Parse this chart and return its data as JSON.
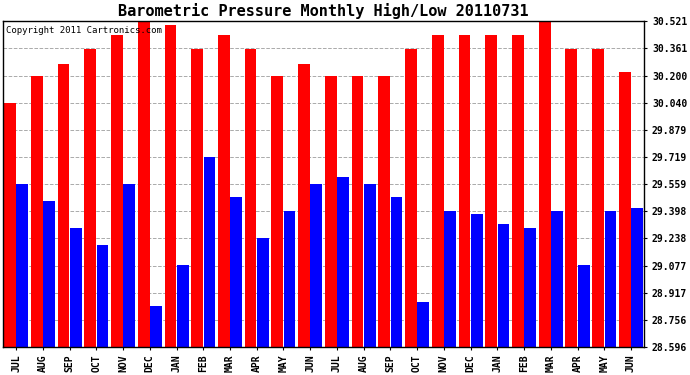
{
  "title": "Barometric Pressure Monthly High/Low 20110731",
  "copyright_text": "Copyright 2011 Cartronics.com",
  "months": [
    "JUL",
    "AUG",
    "SEP",
    "OCT",
    "NOV",
    "DEC",
    "JAN",
    "FEB",
    "MAR",
    "APR",
    "MAY",
    "JUN",
    "JUL",
    "AUG",
    "SEP",
    "OCT",
    "NOV",
    "DEC",
    "JAN",
    "FEB",
    "MAR",
    "APR",
    "MAY",
    "JUN"
  ],
  "highs": [
    30.04,
    30.2,
    30.27,
    30.36,
    30.44,
    30.52,
    30.5,
    30.36,
    30.44,
    30.36,
    30.2,
    30.27,
    30.2,
    30.2,
    30.2,
    30.36,
    30.44,
    30.44,
    30.44,
    30.44,
    30.52,
    30.36,
    30.36,
    30.22
  ],
  "lows": [
    29.56,
    29.46,
    29.3,
    29.2,
    29.56,
    28.84,
    29.08,
    29.72,
    29.48,
    29.24,
    29.4,
    29.56,
    29.6,
    29.56,
    29.48,
    28.86,
    29.4,
    29.38,
    29.32,
    29.3,
    29.4,
    29.08,
    29.4,
    29.42
  ],
  "bar_high_color": "#FF0000",
  "bar_low_color": "#0000FF",
  "background_color": "#FFFFFF",
  "ylim_min": 28.596,
  "ylim_max": 30.521,
  "yticks": [
    28.596,
    28.756,
    28.917,
    29.077,
    29.238,
    29.398,
    29.559,
    29.719,
    29.879,
    30.04,
    30.2,
    30.361,
    30.521
  ],
  "grid_color": "#AAAAAA",
  "title_fontsize": 11,
  "tick_fontsize": 7,
  "copyright_fontsize": 6.5
}
